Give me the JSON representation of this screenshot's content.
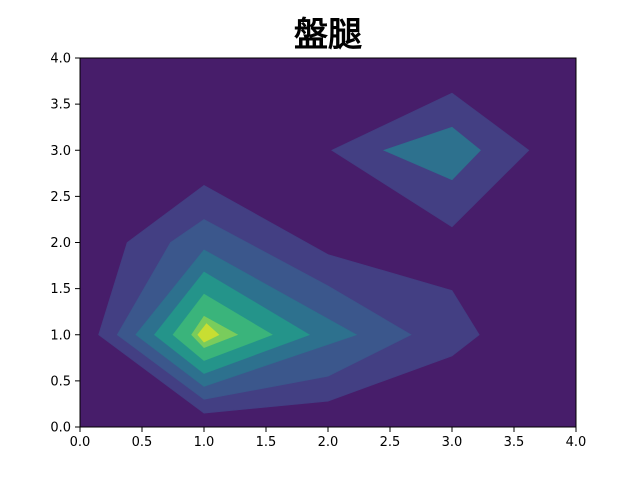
{
  "chart_data": {
    "type": "contour",
    "title": "盤腿",
    "xlabel": "",
    "ylabel": "",
    "xlim": [
      0,
      4
    ],
    "ylim": [
      0,
      4
    ],
    "x_ticks": [
      "0.0",
      "0.5",
      "1.0",
      "1.5",
      "2.0",
      "2.5",
      "3.0",
      "3.5",
      "4.0"
    ],
    "y_ticks": [
      "0.0",
      "0.5",
      "1.0",
      "1.5",
      "2.0",
      "2.5",
      "3.0",
      "3.5",
      "4.0"
    ],
    "grid": false,
    "colormap": "viridis",
    "background_color": "#471d6a",
    "levels": [
      {
        "color": "#433f83",
        "points": [
          [
            0.15,
            1.0
          ],
          [
            0.38,
            2.0
          ],
          [
            1.0,
            2.62
          ],
          [
            2.0,
            1.87
          ],
          [
            3.0,
            1.48
          ],
          [
            3.22,
            1.0
          ],
          [
            3.0,
            0.77
          ],
          [
            2.0,
            0.28
          ],
          [
            1.0,
            0.15
          ]
        ]
      },
      {
        "color": "#433f83",
        "points": [
          [
            2.03,
            3.0
          ],
          [
            3.0,
            3.62
          ],
          [
            3.62,
            3.0
          ],
          [
            3.0,
            2.17
          ]
        ]
      },
      {
        "color": "#3b578c",
        "points": [
          [
            0.3,
            1.0
          ],
          [
            0.73,
            2.0
          ],
          [
            1.0,
            2.25
          ],
          [
            2.0,
            1.53
          ],
          [
            2.67,
            1.0
          ],
          [
            2.0,
            0.55
          ],
          [
            1.0,
            0.3
          ]
        ]
      },
      {
        "color": "#2d718e",
        "points": [
          [
            0.45,
            1.0
          ],
          [
            1.0,
            1.92
          ],
          [
            2.23,
            1.0
          ],
          [
            1.0,
            0.44
          ]
        ]
      },
      {
        "color": "#2d718e",
        "points": [
          [
            2.45,
            3.0
          ],
          [
            3.0,
            3.25
          ],
          [
            3.23,
            3.0
          ],
          [
            3.0,
            2.68
          ]
        ]
      },
      {
        "color": "#24948a",
        "points": [
          [
            0.6,
            1.0
          ],
          [
            1.0,
            1.68
          ],
          [
            1.85,
            1.0
          ],
          [
            1.0,
            0.58
          ]
        ]
      },
      {
        "color": "#3ab47b",
        "points": [
          [
            0.75,
            1.0
          ],
          [
            1.0,
            1.44
          ],
          [
            1.55,
            1.0
          ],
          [
            1.0,
            0.72
          ]
        ]
      },
      {
        "color": "#79cc5c",
        "points": [
          [
            0.9,
            1.0
          ],
          [
            1.0,
            1.2
          ],
          [
            1.27,
            1.0
          ],
          [
            1.0,
            0.86
          ]
        ]
      },
      {
        "color": "#c8de32",
        "points": [
          [
            0.95,
            1.0
          ],
          [
            1.02,
            1.12
          ],
          [
            1.12,
            1.0
          ],
          [
            1.0,
            0.92
          ]
        ]
      }
    ]
  }
}
